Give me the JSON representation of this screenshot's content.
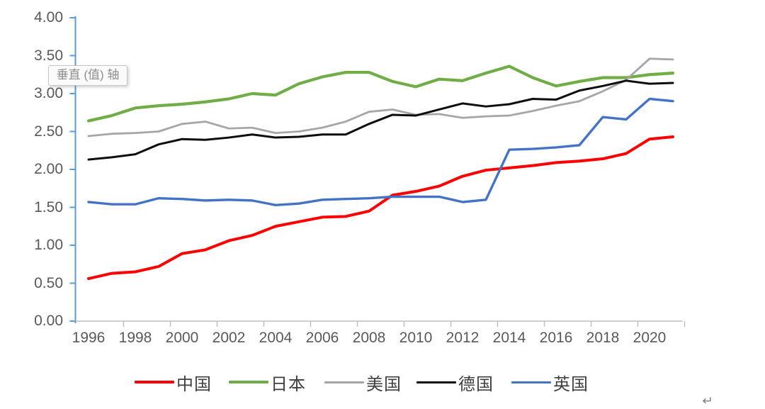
{
  "chart_data": {
    "type": "line",
    "title": "",
    "x": [
      1996,
      1997,
      1998,
      1999,
      2000,
      2001,
      2002,
      2003,
      2004,
      2005,
      2006,
      2007,
      2008,
      2009,
      2010,
      2011,
      2012,
      2013,
      2014,
      2015,
      2016,
      2017,
      2018,
      2019,
      2020,
      2021
    ],
    "series": [
      {
        "key": "china",
        "name": "中国",
        "color": "#fe0000",
        "line_width": 4,
        "values": [
          0.56,
          0.63,
          0.65,
          0.72,
          0.89,
          0.94,
          1.06,
          1.13,
          1.25,
          1.31,
          1.37,
          1.38,
          1.45,
          1.66,
          1.71,
          1.78,
          1.91,
          1.99,
          2.02,
          2.05,
          2.09,
          2.11,
          2.14,
          2.21,
          2.4,
          2.43
        ]
      },
      {
        "key": "japan",
        "name": "日本",
        "color": "#70ad47",
        "line_width": 4.2,
        "values": [
          2.64,
          2.71,
          2.81,
          2.84,
          2.86,
          2.89,
          2.93,
          3.0,
          2.98,
          3.13,
          3.22,
          3.28,
          3.28,
          3.16,
          3.09,
          3.19,
          3.17,
          3.27,
          3.36,
          3.21,
          3.1,
          3.16,
          3.21,
          3.21,
          3.25,
          3.27
        ]
      },
      {
        "key": "usa",
        "name": "美国",
        "color": "#a6a6a6",
        "line_width": 2.8,
        "values": [
          2.44,
          2.47,
          2.48,
          2.5,
          2.6,
          2.63,
          2.54,
          2.55,
          2.48,
          2.5,
          2.55,
          2.63,
          2.76,
          2.79,
          2.72,
          2.73,
          2.68,
          2.7,
          2.71,
          2.77,
          2.84,
          2.9,
          3.03,
          3.18,
          3.46,
          3.45
        ]
      },
      {
        "key": "germany",
        "name": "德国",
        "color": "#0d0d0d",
        "line_width": 3,
        "values": [
          2.13,
          2.16,
          2.2,
          2.33,
          2.4,
          2.39,
          2.42,
          2.46,
          2.42,
          2.43,
          2.46,
          2.46,
          2.6,
          2.72,
          2.71,
          2.79,
          2.87,
          2.83,
          2.86,
          2.93,
          2.92,
          3.04,
          3.1,
          3.17,
          3.13,
          3.14
        ]
      },
      {
        "key": "uk",
        "name": "英国",
        "color": "#4472c4",
        "line_width": 3.4,
        "values": [
          1.57,
          1.54,
          1.54,
          1.62,
          1.61,
          1.59,
          1.6,
          1.59,
          1.53,
          1.55,
          1.6,
          1.61,
          1.62,
          1.64,
          1.64,
          1.64,
          1.57,
          1.6,
          2.26,
          2.27,
          2.29,
          2.32,
          2.69,
          2.66,
          2.93,
          2.9
        ]
      }
    ],
    "ylim": [
      0,
      4
    ],
    "ytick_step": 0.5,
    "ytick_labels": [
      "0.00",
      "0.50",
      "1.00",
      "1.50",
      "2.00",
      "2.50",
      "3.00",
      "3.50",
      "4.00"
    ],
    "xtick_labels": [
      "1996",
      "1998",
      "2000",
      "2002",
      "2004",
      "2006",
      "2008",
      "2010",
      "2012",
      "2014",
      "2016",
      "2018",
      "2020"
    ],
    "grid": false,
    "legend_position": "bottom",
    "value_axis_color": "#5b9bd5",
    "category_axis_color": "#bfbfbf",
    "tick_label_color": "#595959",
    "legend_label_color": "#404040"
  },
  "tooltip": {
    "text": "垂直 (值) 轴"
  },
  "paragraph_mark": "↵"
}
